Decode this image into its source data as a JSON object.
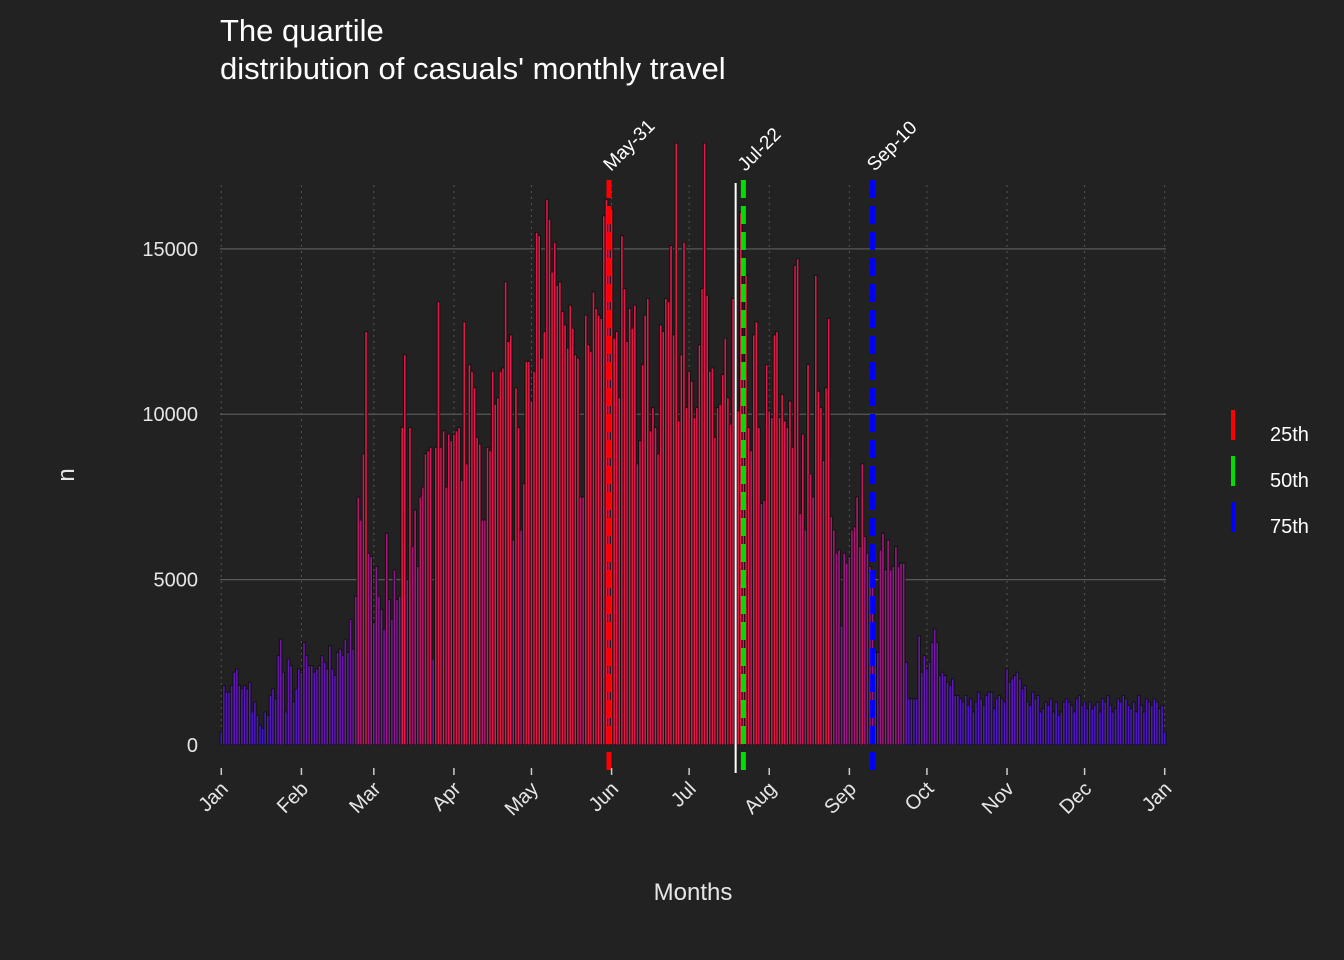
{
  "chart_data": {
    "type": "bar",
    "title_lines": [
      "The quartile",
      "distribution of casuals' monthly travel"
    ],
    "xlabel": "Months",
    "ylabel": "n",
    "ylim": [
      0,
      19500
    ],
    "y_ticks": [
      0,
      5000,
      10000,
      15000
    ],
    "y_tick_labels": [
      "0",
      "5000",
      "10000",
      "15000"
    ],
    "x_tick_labels": [
      "Jan",
      "Feb",
      "Mar",
      "Apr",
      "May",
      "Jun",
      "Jul",
      "Aug",
      "Sep",
      "Oct",
      "Nov",
      "Dec",
      "Jan"
    ],
    "x_tick_days": [
      1,
      32,
      60,
      91,
      121,
      152,
      182,
      213,
      244,
      274,
      305,
      335,
      366
    ],
    "x_range_days": [
      0.5,
      366.5
    ],
    "grid": true,
    "legend_position": "right",
    "colors": {
      "background": "#222222",
      "grid": "#595959",
      "low": "#3a17d6",
      "high": "#e8174a",
      "q25": "#ff0000",
      "q50": "#00dd00",
      "q75": "#0000ff",
      "mean_line": "#ffffff"
    },
    "quartiles": [
      {
        "name": "25th",
        "day": 151,
        "label": "May-31",
        "color": "#ff0000"
      },
      {
        "name": "50th",
        "day": 203,
        "label": "Jul-22",
        "color": "#00dd00"
      },
      {
        "name": "75th",
        "day": 253,
        "label": "Sep-10",
        "color": "#0000ff"
      }
    ],
    "mean_day": 200,
    "values": [
      400,
      1800,
      1600,
      1600,
      1800,
      2200,
      2300,
      1800,
      1700,
      1800,
      1700,
      1900,
      1000,
      1300,
      900,
      600,
      500,
      1000,
      900,
      1500,
      1700,
      1400,
      2700,
      3200,
      2200,
      1000,
      2600,
      2400,
      1300,
      1700,
      2300,
      2200,
      3100,
      2700,
      2400,
      2400,
      2200,
      2300,
      2400,
      2700,
      2500,
      2300,
      3000,
      2300,
      2100,
      2800,
      2900,
      2700,
      3200,
      2800,
      3800,
      2900,
      4500,
      7500,
      6800,
      8800,
      12500,
      5800,
      5700,
      3700,
      5400,
      4500,
      4100,
      3500,
      6400,
      4400,
      3800,
      5300,
      4400,
      4500,
      9600,
      11800,
      5000,
      9600,
      6000,
      7100,
      5400,
      7500,
      7800,
      8800,
      8900,
      9000,
      2600,
      9000,
      13400,
      9000,
      9500,
      7800,
      9400,
      9200,
      9400,
      9500,
      9600,
      8000,
      12800,
      8500,
      11500,
      11300,
      10800,
      9300,
      9100,
      6800,
      6800,
      9000,
      8900,
      11300,
      10300,
      10500,
      11300,
      11400,
      14000,
      12200,
      12400,
      6200,
      10800,
      9600,
      6500,
      7900,
      11600,
      11600,
      10400,
      11300,
      15500,
      15400,
      11700,
      12500,
      16500,
      15900,
      14300,
      15200,
      13900,
      14000,
      13100,
      12700,
      12000,
      13300,
      12600,
      11800,
      11700,
      7500,
      7500,
      13000,
      12100,
      11900,
      13700,
      13200,
      13000,
      12900,
      16000,
      16500,
      15800,
      16200,
      12300,
      12500,
      10500,
      15400,
      13800,
      12200,
      13200,
      12600,
      13300,
      8500,
      9200,
      11500,
      13000,
      13500,
      9500,
      10200,
      9600,
      8800,
      12700,
      12500,
      13500,
      13400,
      15100,
      12400,
      18200,
      9800,
      11800,
      15200,
      10200,
      11300,
      11000,
      9900,
      10200,
      12100,
      13800,
      18200,
      13600,
      11300,
      11400,
      9300,
      10200,
      10300,
      11200,
      12300,
      10500,
      9700,
      13500,
      9600,
      10100,
      16100,
      11500,
      14200,
      9600,
      8900,
      12400,
      12800,
      9600,
      7300,
      7400,
      11500,
      10100,
      9900,
      12400,
      12500,
      9900,
      10600,
      9800,
      9600,
      10400,
      9000,
      14500,
      14700,
      7000,
      9400,
      6500,
      11500,
      8200,
      7500,
      14200,
      10700,
      10200,
      8600,
      10800,
      12900,
      6900,
      6500,
      5800,
      5900,
      3600,
      5800,
      5500,
      5700,
      6500,
      6600,
      7500,
      6000,
      8500,
      6300,
      5800,
      5400,
      5100,
      2800,
      2800,
      5900,
      6400,
      5300,
      6200,
      5300,
      5400,
      6000,
      5400,
      5500,
      5500,
      2500,
      1400,
      1400,
      1400,
      1400,
      3300,
      2200,
      2700,
      2300,
      2500,
      3100,
      3500,
      3100,
      2100,
      2200,
      2100,
      1900,
      1800,
      2000,
      1500,
      1500,
      1400,
      1300,
      1500,
      1200,
      1400,
      1000,
      1300,
      1600,
      1400,
      1200,
      1500,
      1600,
      1600,
      1100,
      1400,
      1500,
      1400,
      1300,
      2300,
      1900,
      2000,
      2100,
      2200,
      2000,
      1700,
      1800,
      1300,
      1200,
      1600,
      1400,
      1500,
      1000,
      1100,
      1300,
      1200,
      1400,
      1000,
      1300,
      900,
      1000,
      1300,
      1400,
      1300,
      1200,
      1000,
      1400,
      1500,
      1200,
      1300,
      1100,
      1300,
      1100,
      1200,
      1300,
      1000,
      1400,
      1300,
      1500,
      1200,
      1000,
      1100,
      1400,
      1300,
      1500,
      1400,
      1200,
      1100,
      1300,
      1000,
      1500,
      1200,
      1000,
      1400,
      1300,
      1200,
      1400,
      1300,
      1100,
      1200,
      400
    ]
  }
}
